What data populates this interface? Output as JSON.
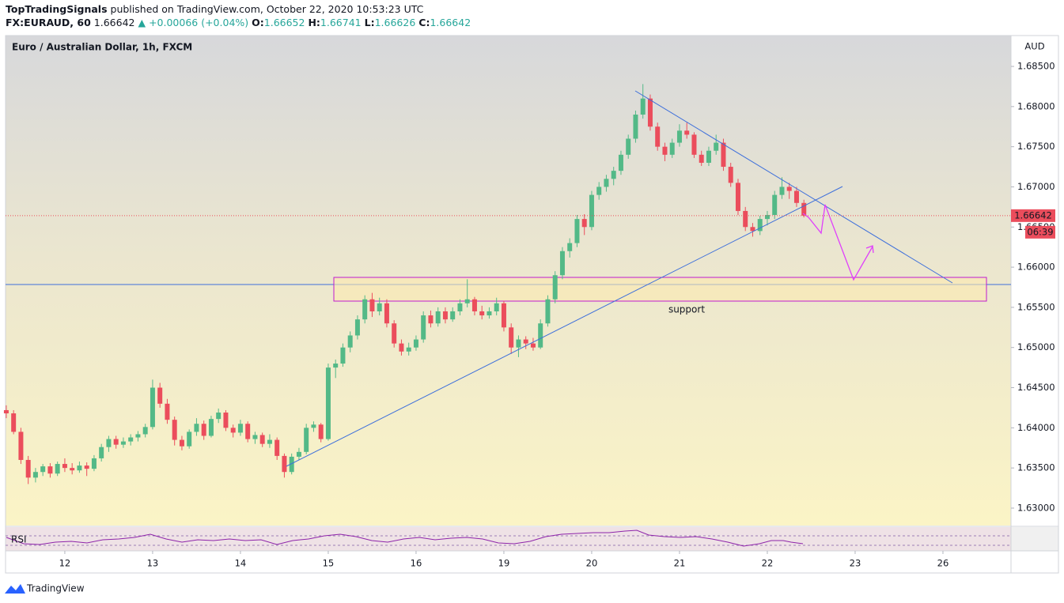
{
  "header": {
    "publisher": "TopTradingSignals",
    "published": "published on TradingView.com, October 22, 2020 10:53:23 UTC",
    "symbol": "FX:EURAUD, 60",
    "price": "1.66642",
    "change": "▲ +0.00066 (+0.04%)",
    "ohlc_text": [
      {
        "key": "O:",
        "value": "1.66652"
      },
      {
        "key": "H:",
        "value": "1.66741"
      },
      {
        "key": "L:",
        "value": "1.66626"
      },
      {
        "key": "C:",
        "value": "1.66642"
      }
    ]
  },
  "brand": "TradingView",
  "chart_data": {
    "type": "candlestick",
    "title": "Euro / Australian Dollar, 1h, FXCM",
    "currency": "AUD",
    "up_color": "#53b987",
    "down_color": "#eb4d5c",
    "last_price": 1.66642,
    "countdown": "06:39",
    "annotation": "support",
    "indicator": "RSI",
    "ylim": [
      1.62783,
      1.68884
    ],
    "xlim": [
      -0.1,
      137.3
    ],
    "grid": false,
    "yticks": [
      {
        "value": 1.63,
        "label": "1.63000"
      },
      {
        "value": 1.635,
        "label": "1.63500"
      },
      {
        "value": 1.64,
        "label": "1.64000"
      },
      {
        "value": 1.645,
        "label": "1.64500"
      },
      {
        "value": 1.65,
        "label": "1.65000"
      },
      {
        "value": 1.655,
        "label": "1.65500"
      },
      {
        "value": 1.66,
        "label": "1.66000"
      },
      {
        "value": 1.665,
        "label": "1.66500"
      },
      {
        "value": 1.67,
        "label": "1.67000"
      },
      {
        "value": 1.675,
        "label": "1.67500"
      },
      {
        "value": 1.68,
        "label": "1.68000"
      },
      {
        "value": 1.685,
        "label": "1.68500"
      }
    ],
    "xticks": [
      {
        "value": 8,
        "label": "12"
      },
      {
        "value": 20,
        "label": "13"
      },
      {
        "value": 32,
        "label": "14"
      },
      {
        "value": 44,
        "label": "15"
      },
      {
        "value": 56,
        "label": "16"
      },
      {
        "value": 68,
        "label": "19"
      },
      {
        "value": 80,
        "label": "20"
      },
      {
        "value": 92,
        "label": "21"
      },
      {
        "value": 104,
        "label": "22"
      },
      {
        "value": 116,
        "label": "23"
      },
      {
        "value": 128,
        "label": "26"
      }
    ],
    "ohlc": [
      [
        1.6422,
        1.6428,
        1.6412,
        1.6418
      ],
      [
        1.6418,
        1.6422,
        1.6392,
        1.6395
      ],
      [
        1.6395,
        1.64,
        1.6355,
        1.636
      ],
      [
        1.636,
        1.6365,
        1.633,
        1.6338
      ],
      [
        1.6338,
        1.635,
        1.6332,
        1.6345
      ],
      [
        1.6345,
        1.6355,
        1.634,
        1.6352
      ],
      [
        1.6352,
        1.6356,
        1.6338,
        1.6343
      ],
      [
        1.6343,
        1.6358,
        1.634,
        1.6355
      ],
      [
        1.6355,
        1.6362,
        1.6345,
        1.635
      ],
      [
        1.635,
        1.6356,
        1.6342,
        1.6347
      ],
      [
        1.6347,
        1.6358,
        1.6344,
        1.6353
      ],
      [
        1.6353,
        1.6357,
        1.634,
        1.6349
      ],
      [
        1.6349,
        1.6366,
        1.6346,
        1.6362
      ],
      [
        1.6362,
        1.638,
        1.6358,
        1.6376
      ],
      [
        1.6376,
        1.639,
        1.637,
        1.6386
      ],
      [
        1.6386,
        1.639,
        1.6374,
        1.6379
      ],
      [
        1.6379,
        1.6388,
        1.6375,
        1.6383
      ],
      [
        1.6383,
        1.6392,
        1.6378,
        1.6388
      ],
      [
        1.6388,
        1.6396,
        1.6383,
        1.6392
      ],
      [
        1.6392,
        1.6405,
        1.6388,
        1.6401
      ],
      [
        1.6401,
        1.646,
        1.6398,
        1.645
      ],
      [
        1.645,
        1.6456,
        1.6425,
        1.643
      ],
      [
        1.643,
        1.6436,
        1.6405,
        1.641
      ],
      [
        1.641,
        1.6414,
        1.6378,
        1.6385
      ],
      [
        1.6385,
        1.639,
        1.6372,
        1.6377
      ],
      [
        1.6377,
        1.6398,
        1.6374,
        1.6395
      ],
      [
        1.6395,
        1.6412,
        1.639,
        1.6405
      ],
      [
        1.6405,
        1.6409,
        1.6385,
        1.639
      ],
      [
        1.639,
        1.6415,
        1.6388,
        1.6411
      ],
      [
        1.6411,
        1.6424,
        1.6406,
        1.6419
      ],
      [
        1.6419,
        1.6422,
        1.6396,
        1.64
      ],
      [
        1.64,
        1.6404,
        1.6388,
        1.6394
      ],
      [
        1.6394,
        1.641,
        1.639,
        1.6405
      ],
      [
        1.6405,
        1.6408,
        1.6382,
        1.6386
      ],
      [
        1.6386,
        1.6395,
        1.638,
        1.6391
      ],
      [
        1.6391,
        1.6394,
        1.6376,
        1.638
      ],
      [
        1.638,
        1.6392,
        1.6375,
        1.6385
      ],
      [
        1.6385,
        1.6388,
        1.636,
        1.6365
      ],
      [
        1.6365,
        1.6368,
        1.6338,
        1.6345
      ],
      [
        1.6345,
        1.6368,
        1.6342,
        1.6364
      ],
      [
        1.6364,
        1.6375,
        1.636,
        1.637
      ],
      [
        1.637,
        1.6405,
        1.6367,
        1.64
      ],
      [
        1.64,
        1.6408,
        1.6395,
        1.6404
      ],
      [
        1.6404,
        1.6406,
        1.6382,
        1.6386
      ],
      [
        1.6386,
        1.648,
        1.6384,
        1.6475
      ],
      [
        1.6475,
        1.6485,
        1.6462,
        1.648
      ],
      [
        1.648,
        1.6505,
        1.6476,
        1.65
      ],
      [
        1.65,
        1.652,
        1.6494,
        1.6515
      ],
      [
        1.6515,
        1.654,
        1.651,
        1.6535
      ],
      [
        1.6535,
        1.6565,
        1.653,
        1.656
      ],
      [
        1.656,
        1.6568,
        1.6538,
        1.6545
      ],
      [
        1.6545,
        1.6562,
        1.654,
        1.6555
      ],
      [
        1.6555,
        1.656,
        1.6525,
        1.653
      ],
      [
        1.653,
        1.6534,
        1.65,
        1.6505
      ],
      [
        1.6505,
        1.651,
        1.649,
        1.6495
      ],
      [
        1.6495,
        1.6506,
        1.649,
        1.65
      ],
      [
        1.65,
        1.6515,
        1.6496,
        1.651
      ],
      [
        1.651,
        1.6545,
        1.6506,
        1.654
      ],
      [
        1.654,
        1.6546,
        1.6525,
        1.653
      ],
      [
        1.653,
        1.655,
        1.6526,
        1.6545
      ],
      [
        1.6545,
        1.655,
        1.653,
        1.6535
      ],
      [
        1.6535,
        1.655,
        1.6532,
        1.6545
      ],
      [
        1.6545,
        1.656,
        1.654,
        1.6555
      ],
      [
        1.6555,
        1.6585,
        1.655,
        1.656
      ],
      [
        1.656,
        1.6563,
        1.654,
        1.6545
      ],
      [
        1.6545,
        1.6552,
        1.6535,
        1.654
      ],
      [
        1.654,
        1.655,
        1.6536,
        1.6545
      ],
      [
        1.6545,
        1.6562,
        1.654,
        1.6555
      ],
      [
        1.6555,
        1.6558,
        1.652,
        1.6525
      ],
      [
        1.6525,
        1.653,
        1.6492,
        1.65
      ],
      [
        1.65,
        1.6515,
        1.6488,
        1.651
      ],
      [
        1.651,
        1.6514,
        1.6498,
        1.6505
      ],
      [
        1.6505,
        1.6512,
        1.6496,
        1.65
      ],
      [
        1.65,
        1.6535,
        1.6498,
        1.653
      ],
      [
        1.653,
        1.6565,
        1.6526,
        1.656
      ],
      [
        1.656,
        1.6595,
        1.6555,
        1.659
      ],
      [
        1.659,
        1.6625,
        1.6585,
        1.662
      ],
      [
        1.662,
        1.6636,
        1.6612,
        1.663
      ],
      [
        1.663,
        1.6665,
        1.6625,
        1.666
      ],
      [
        1.666,
        1.6666,
        1.664,
        1.665
      ],
      [
        1.665,
        1.6695,
        1.6646,
        1.669
      ],
      [
        1.669,
        1.6706,
        1.6684,
        1.67
      ],
      [
        1.67,
        1.6715,
        1.6694,
        1.671
      ],
      [
        1.671,
        1.6725,
        1.6702,
        1.672
      ],
      [
        1.672,
        1.6745,
        1.6715,
        1.674
      ],
      [
        1.674,
        1.6765,
        1.6735,
        1.676
      ],
      [
        1.676,
        1.6795,
        1.6755,
        1.679
      ],
      [
        1.679,
        1.6828,
        1.6785,
        1.681
      ],
      [
        1.681,
        1.6815,
        1.677,
        1.6775
      ],
      [
        1.6775,
        1.678,
        1.6745,
        1.675
      ],
      [
        1.675,
        1.6755,
        1.6732,
        1.674
      ],
      [
        1.674,
        1.676,
        1.6736,
        1.6755
      ],
      [
        1.6755,
        1.6778,
        1.675,
        1.677
      ],
      [
        1.677,
        1.678,
        1.676,
        1.6765
      ],
      [
        1.6765,
        1.6768,
        1.6736,
        1.674
      ],
      [
        1.674,
        1.6745,
        1.6726,
        1.673
      ],
      [
        1.673,
        1.675,
        1.6726,
        1.6745
      ],
      [
        1.6745,
        1.6765,
        1.674,
        1.6755
      ],
      [
        1.6755,
        1.676,
        1.672,
        1.6725
      ],
      [
        1.6725,
        1.673,
        1.67,
        1.6705
      ],
      [
        1.6705,
        1.671,
        1.6665,
        1.667
      ],
      [
        1.667,
        1.6675,
        1.6645,
        1.665
      ],
      [
        1.665,
        1.6655,
        1.6638,
        1.6645
      ],
      [
        1.6645,
        1.6664,
        1.664,
        1.666
      ],
      [
        1.666,
        1.667,
        1.6652,
        1.6665
      ],
      [
        1.6665,
        1.6695,
        1.666,
        1.669
      ],
      [
        1.669,
        1.6712,
        1.6685,
        1.67
      ],
      [
        1.67,
        1.6705,
        1.6685,
        1.6695
      ],
      [
        1.6695,
        1.67,
        1.6675,
        1.668
      ],
      [
        1.668,
        1.6684,
        1.6662,
        1.66642
      ]
    ]
  }
}
